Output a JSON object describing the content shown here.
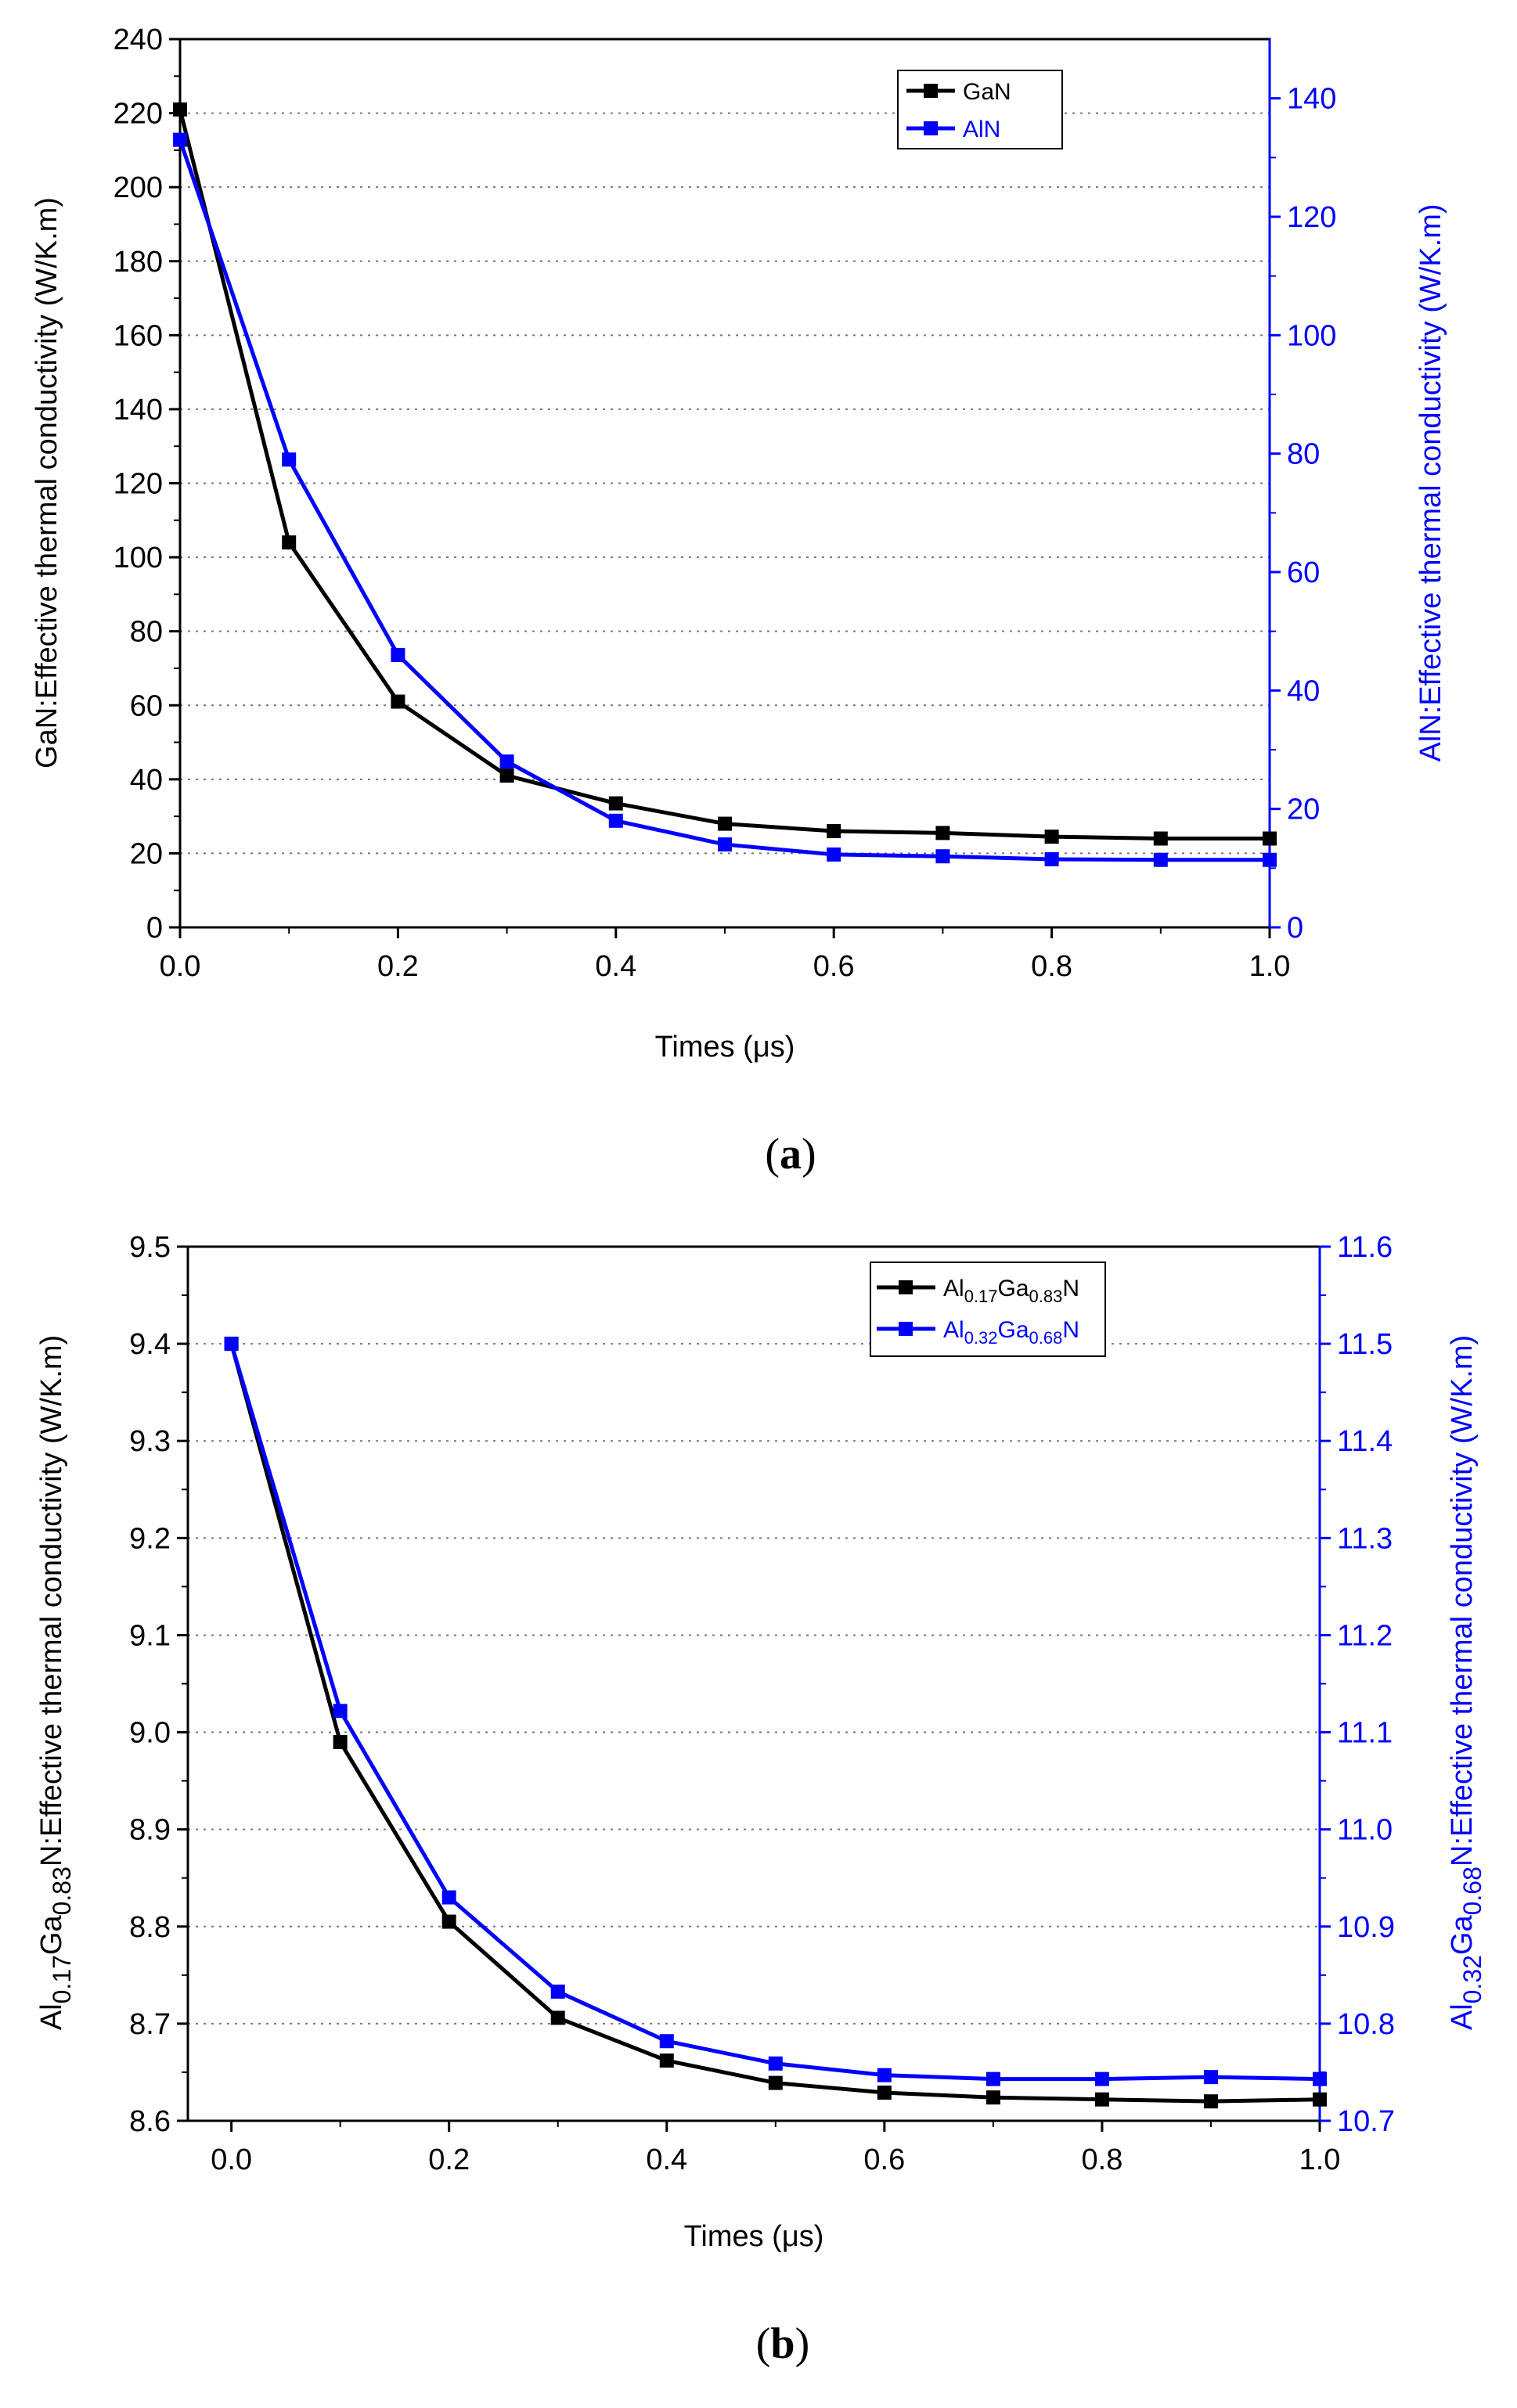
{
  "colors": {
    "series1": "#000000",
    "series2": "#0000ff",
    "grid": "#777777",
    "axis": "#000000"
  },
  "chart_data": [
    {
      "type": "line",
      "panel_label_open": "(",
      "panel_label_letter": "a",
      "panel_label_close": ")",
      "xlabel": "Times (μs)",
      "ylabel_left": "GaN:Effective thermal conductivity (W/K.m)",
      "ylabel_right": "AlN:Effective thermal conductivity (W/K.m)",
      "xlim": [
        0,
        1.0
      ],
      "ylim_left": [
        0,
        240
      ],
      "ylim_right": [
        0,
        150
      ],
      "x_ticks": [
        "0.0",
        "0.2",
        "0.4",
        "0.6",
        "0.8",
        "1.0"
      ],
      "y_left_ticks": [
        "0",
        "20",
        "40",
        "60",
        "80",
        "100",
        "120",
        "140",
        "160",
        "180",
        "200",
        "220",
        "240"
      ],
      "y_right_ticks": [
        "0",
        "20",
        "40",
        "60",
        "80",
        "100",
        "120",
        "140"
      ],
      "grid": "horizontal dotted",
      "legend_position": "top-right",
      "series": [
        {
          "name": "GaN",
          "axis": "left",
          "x": [
            0,
            0.1,
            0.2,
            0.3,
            0.4,
            0.5,
            0.6,
            0.7,
            0.8,
            0.9,
            1.0
          ],
          "values": [
            221,
            104,
            61,
            41,
            33.5,
            28,
            26,
            25.5,
            24.5,
            24,
            24
          ]
        },
        {
          "name": "AlN",
          "axis": "right",
          "x": [
            0,
            0.1,
            0.2,
            0.3,
            0.4,
            0.5,
            0.6,
            0.7,
            0.8,
            0.9,
            1.0
          ],
          "values": [
            133,
            79,
            46,
            28,
            18,
            14,
            12.3,
            12,
            11.5,
            11.4,
            11.4
          ]
        }
      ]
    },
    {
      "type": "line",
      "panel_label_open": "(",
      "panel_label_letter": "b",
      "panel_label_close": ")",
      "xlabel": "Times (μs)",
      "ylabel_left": "Al0.17Ga0.83N:Effective thermal conductivity (W/K.m)",
      "ylabel_right": "Al0.32Ga0.68N:Effective thermal conductivity (W/K.m)",
      "xlim": [
        -0.04,
        1.0
      ],
      "ylim_left": [
        8.6,
        9.5
      ],
      "ylim_right": [
        10.7,
        11.6
      ],
      "x_ticks": [
        "0.0",
        "0.2",
        "0.4",
        "0.6",
        "0.8",
        "1.0"
      ],
      "y_left_ticks": [
        "8.6",
        "8.7",
        "8.8",
        "8.9",
        "9.0",
        "9.1",
        "9.2",
        "9.3",
        "9.4",
        "9.5"
      ],
      "y_right_ticks": [
        "10.7",
        "10.8",
        "10.9",
        "11.0",
        "11.1",
        "11.2",
        "11.3",
        "11.4",
        "11.5",
        "11.6"
      ],
      "grid": "horizontal dotted",
      "legend_position": "top-right",
      "series": [
        {
          "name": "Al0.17Ga0.83N",
          "axis": "left",
          "x": [
            0,
            0.1,
            0.2,
            0.3,
            0.4,
            0.5,
            0.6,
            0.7,
            0.8,
            0.9,
            1.0
          ],
          "values": [
            9.4,
            8.99,
            8.805,
            8.706,
            8.662,
            8.639,
            8.629,
            8.624,
            8.622,
            8.62,
            8.622
          ]
        },
        {
          "name": "Al0.32Ga0.68N",
          "axis": "right",
          "x": [
            0,
            0.1,
            0.2,
            0.3,
            0.4,
            0.5,
            0.6,
            0.7,
            0.8,
            0.9,
            1.0
          ],
          "values": [
            11.5,
            11.122,
            10.93,
            10.833,
            10.782,
            10.759,
            10.747,
            10.743,
            10.743,
            10.745,
            10.743
          ]
        }
      ]
    }
  ]
}
